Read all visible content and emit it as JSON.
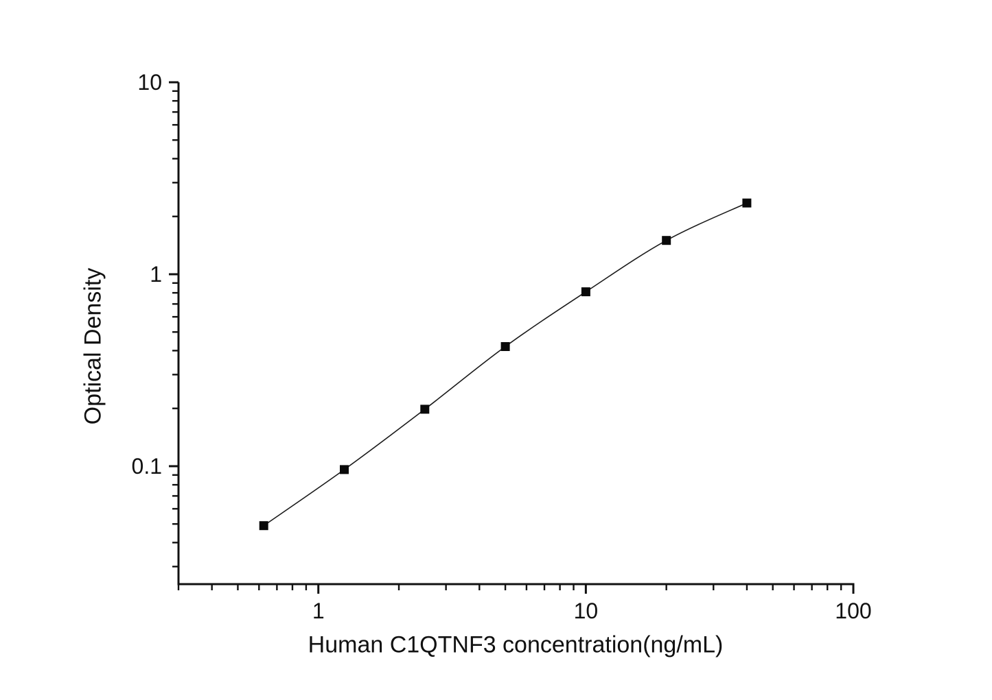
{
  "figure": {
    "background": "#ffffff",
    "ink_color": "#111111"
  },
  "chart_data": {
    "type": "line",
    "title": "",
    "xlabel": "Human C1QTNF3 concentration(ng/mL)",
    "ylabel": "Optical Density",
    "xscale": "log",
    "yscale": "log",
    "xlim": [
      0.3,
      100
    ],
    "ylim": [
      0.0243,
      10
    ],
    "grid": false,
    "legend_position": "none",
    "marker": "filled-square",
    "marker_size": 13,
    "line_width": 1.6,
    "line_color": "#1a1a1a",
    "marker_color": "#0a0a0a",
    "axis_color": "#111111",
    "x": [
      0.625,
      1.25,
      2.5,
      5,
      10,
      20,
      40
    ],
    "y": [
      0.049,
      0.096,
      0.198,
      0.42,
      0.81,
      1.5,
      2.35
    ],
    "x_ticks": [
      {
        "value": 1,
        "label": "1"
      },
      {
        "value": 10,
        "label": "10"
      },
      {
        "value": 100,
        "label": "100"
      }
    ],
    "y_ticks": [
      {
        "value": 10,
        "label": "10"
      },
      {
        "value": 1,
        "label": "1"
      },
      {
        "value": 0.1,
        "label": "0.1"
      }
    ]
  }
}
